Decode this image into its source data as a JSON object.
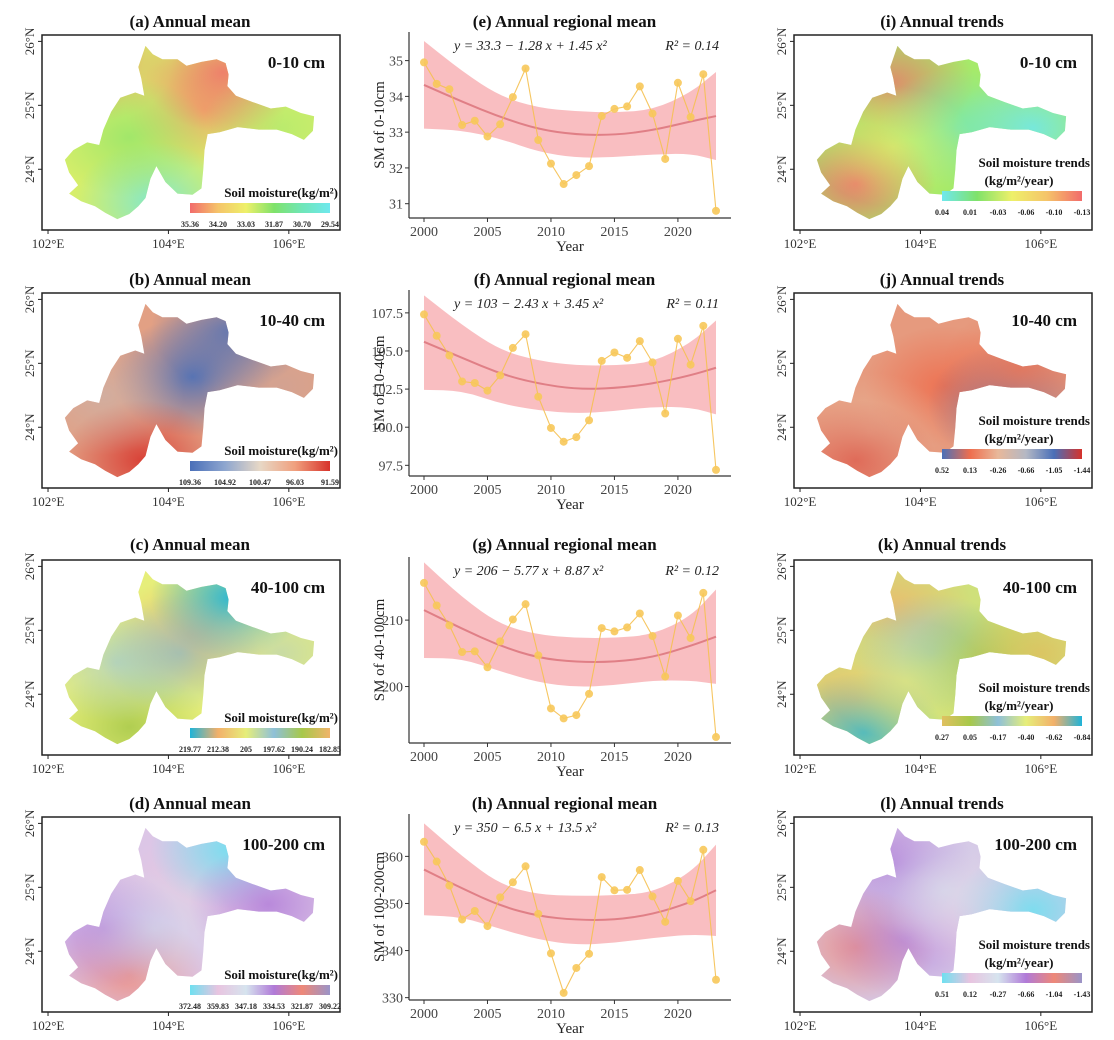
{
  "chart_data": {
    "maps": [
      {
        "id": "a",
        "title": "(a) Annual mean",
        "depth": "0-10 cm",
        "legend_title": "Soil moisture(kg/m²)",
        "legend_title_lines": [
          "Soil moisture(kg/m",
          "2",
          ")"
        ],
        "legend_ticks": [
          "35.36",
          "34.20",
          "33.03",
          "31.87",
          "30.70",
          "29.54"
        ],
        "colors": [
          "#f26b6b",
          "#f5c46a",
          "#eef06a",
          "#7fe26a",
          "#6fe6b8",
          "#6fe8ee"
        ],
        "x_ticks": [
          "102°E",
          "104°E",
          "106°E"
        ],
        "y_ticks": [
          "26°N",
          "25°N",
          "24°N"
        ],
        "field": "a"
      },
      {
        "id": "b",
        "title": "(b) Annual mean",
        "depth": "10-40 cm",
        "legend_title": "Soil moisture(kg/m²)",
        "legend_ticks": [
          "109.36",
          "104.92",
          "100.47",
          "96.03",
          "91.59"
        ],
        "colors": [
          "#4a6fb8",
          "#8ea6cf",
          "#e7d8c6",
          "#f0a07e",
          "#d7322a"
        ],
        "x_ticks": [
          "102°E",
          "104°E",
          "106°E"
        ],
        "y_ticks": [
          "26°N",
          "25°N",
          "24°N"
        ],
        "field": "b"
      },
      {
        "id": "c",
        "title": "(c) Annual mean",
        "depth": "40-100 cm",
        "legend_title": "Soil moisture(kg/m²)",
        "legend_ticks": [
          "219.77",
          "212.38",
          "205",
          "197.62",
          "190.24",
          "182.85"
        ],
        "colors": [
          "#1fb3d8",
          "#f2b06a",
          "#e6ee7a",
          "#8ec0d8",
          "#a7c84a",
          "#f0b46a"
        ],
        "x_ticks": [
          "102°E",
          "104°E",
          "106°E"
        ],
        "y_ticks": [
          "26°N",
          "25°N",
          "24°N"
        ],
        "field": "c"
      },
      {
        "id": "d",
        "title": "(d) Annual mean",
        "depth": "100-200 cm",
        "legend_title": "Soil moisture(kg/m²)",
        "legend_ticks": [
          "372.48",
          "359.83",
          "347.18",
          "334.53",
          "321.87",
          "309.22"
        ],
        "colors": [
          "#6fe0f0",
          "#e8c4e0",
          "#d6e4ee",
          "#b07ad8",
          "#ee8878",
          "#9a94c8"
        ],
        "x_ticks": [
          "102°E",
          "104°E",
          "106°E"
        ],
        "y_ticks": [
          "26°N",
          "25°N",
          "24°N"
        ],
        "field": "d"
      },
      {
        "id": "i",
        "title": "(i) Annual trends",
        "depth": "0-10 cm",
        "legend_title": "Soil moisture trends",
        "legend_units": "(kg/m²/year)",
        "legend_ticks": [
          "0.04",
          "0.01",
          "-0.03",
          "-0.06",
          "-0.10",
          "-0.13"
        ],
        "colors": [
          "#6fe8ee",
          "#7fe26a",
          "#eef06a",
          "#f5c46a",
          "#f26b6b"
        ],
        "x_ticks": [
          "102°E",
          "104°E",
          "106°E"
        ],
        "y_ticks": [
          "26°N",
          "25°N",
          "24°N"
        ],
        "field": "i"
      },
      {
        "id": "j",
        "title": "(j) Annual trends",
        "depth": "10-40 cm",
        "legend_title": "Soil moisture trends",
        "legend_units": "(kg/m²/year)",
        "legend_ticks": [
          "0.52",
          "0.13",
          "-0.26",
          "-0.66",
          "-1.05",
          "-1.44"
        ],
        "colors": [
          "#4a6fb8",
          "#ee6e4e",
          "#e8b89a",
          "#b4b8c4",
          "#4a6fb8",
          "#d7322a"
        ],
        "x_ticks": [
          "102°E",
          "104°E",
          "106°E"
        ],
        "y_ticks": [
          "26°N",
          "25°N",
          "24°N"
        ],
        "field": "j"
      },
      {
        "id": "k",
        "title": "(k) Annual trends",
        "depth": "40-100 cm",
        "legend_title": "Soil moisture trends",
        "legend_units": "(kg/m²/year)",
        "legend_ticks": [
          "0.27",
          "0.05",
          "-0.17",
          "-0.40",
          "-0.62",
          "-0.84"
        ],
        "colors": [
          "#e0c060",
          "#a7c84a",
          "#8ec0d8",
          "#e6ee7a",
          "#f2b06a",
          "#1fb3d8"
        ],
        "x_ticks": [
          "102°E",
          "104°E",
          "106°E"
        ],
        "y_ticks": [
          "26°N",
          "25°N",
          "24°N"
        ],
        "field": "k"
      },
      {
        "id": "l",
        "title": "(l) Annual trends",
        "depth": "100-200 cm",
        "legend_title": "Soil moisture trends",
        "legend_units": "(kg/m²/year)",
        "legend_ticks": [
          "0.51",
          "0.12",
          "-0.27",
          "-0.66",
          "-1.04",
          "-1.43"
        ],
        "colors": [
          "#6fe0f0",
          "#e8c4e0",
          "#d6e4ee",
          "#b07ad8",
          "#ee8878",
          "#9a94c8"
        ],
        "x_ticks": [
          "102°E",
          "104°E",
          "106°E"
        ],
        "y_ticks": [
          "26°N",
          "25°N",
          "24°N"
        ],
        "field": "l"
      }
    ],
    "series_plots": [
      {
        "id": "e",
        "type": "line",
        "title": "(e) Annual regional mean",
        "xlabel": "Year",
        "ylabel": "SM of 0-10cm",
        "equation": "y = 33.3 − 1.28 x + 1.45 x²",
        "r2": "R² = 0.14",
        "ylim": [
          30.6,
          35.8
        ],
        "yticks": [
          31,
          32,
          33,
          34,
          35
        ],
        "ytick_labels": [
          "31",
          "32",
          "33",
          "34",
          "35"
        ],
        "x": [
          2000,
          2001,
          2002,
          2003,
          2004,
          2005,
          2006,
          2007,
          2008,
          2009,
          2010,
          2011,
          2012,
          2013,
          2014,
          2015,
          2016,
          2017,
          2018,
          2019,
          2020,
          2021,
          2022,
          2023
        ],
        "values": [
          34.95,
          34.35,
          34.2,
          33.2,
          33.32,
          32.88,
          33.22,
          33.98,
          34.78,
          32.78,
          32.12,
          31.55,
          31.8,
          32.05,
          33.45,
          33.65,
          33.72,
          34.28,
          33.52,
          32.25,
          34.38,
          33.42,
          34.62,
          30.8
        ],
        "fit": {
          "x": [
            2000,
            2003,
            2006,
            2009,
            2012,
            2015,
            2018,
            2021,
            2023
          ],
          "y": [
            34.32,
            33.85,
            33.42,
            33.08,
            32.93,
            32.92,
            33.05,
            33.3,
            33.45
          ]
        },
        "band_upper": [
          35.55,
          34.7,
          34.0,
          33.68,
          33.58,
          33.55,
          33.62,
          34.1,
          34.68
        ],
        "band_lower": [
          33.1,
          33.05,
          32.82,
          32.45,
          32.28,
          32.3,
          32.38,
          32.4,
          32.22
        ]
      },
      {
        "id": "f",
        "type": "line",
        "title": "(f) Annual regional mean",
        "xlabel": "Year",
        "ylabel": "SM of 10-40cm",
        "equation": "y = 103 − 2.43 x + 3.45 x²",
        "r2": "R² = 0.11",
        "ylim": [
          96.8,
          109.0
        ],
        "yticks": [
          97.5,
          100.0,
          102.5,
          105.0,
          107.5
        ],
        "ytick_labels": [
          "97.5",
          "100.0",
          "102.5",
          "105.0",
          "107.5"
        ],
        "x": [
          2000,
          2001,
          2002,
          2003,
          2004,
          2005,
          2006,
          2007,
          2008,
          2009,
          2010,
          2011,
          2012,
          2013,
          2014,
          2015,
          2016,
          2017,
          2018,
          2019,
          2020,
          2021,
          2022,
          2023
        ],
        "values": [
          107.4,
          106.0,
          104.7,
          103.0,
          102.9,
          102.4,
          103.4,
          105.2,
          106.1,
          102.0,
          99.95,
          99.05,
          99.35,
          100.45,
          104.35,
          104.9,
          104.55,
          105.65,
          104.25,
          100.9,
          105.8,
          104.1,
          106.65,
          97.2
        ],
        "fit": {
          "x": [
            2000,
            2003,
            2006,
            2009,
            2012,
            2015,
            2018,
            2021,
            2023
          ],
          "y": [
            105.6,
            104.55,
            103.5,
            102.85,
            102.5,
            102.55,
            102.85,
            103.4,
            103.9
          ]
        },
        "band_upper": [
          108.65,
          106.7,
          105.05,
          104.35,
          104.05,
          104.05,
          104.25,
          105.5,
          107.0
        ],
        "band_lower": [
          102.45,
          102.4,
          101.55,
          101.1,
          100.9,
          101.05,
          101.35,
          101.3,
          100.85
        ]
      },
      {
        "id": "g",
        "type": "line",
        "title": "(g) Annual regional mean",
        "xlabel": "Year",
        "ylabel": "SM of 40-100cm",
        "equation": "y = 206 − 5.77 x + 8.87 x²",
        "r2": "R² = 0.12",
        "ylim": [
          191.5,
          219.5
        ],
        "yticks": [
          200,
          210
        ],
        "ytick_labels": [
          "200",
          "210"
        ],
        "x": [
          2000,
          2001,
          2002,
          2003,
          2004,
          2005,
          2006,
          2007,
          2008,
          2009,
          2010,
          2011,
          2012,
          2013,
          2014,
          2015,
          2016,
          2017,
          2018,
          2019,
          2020,
          2021,
          2022,
          2023
        ],
        "values": [
          215.6,
          212.2,
          209.2,
          205.2,
          205.3,
          202.9,
          206.8,
          210.1,
          212.4,
          204.7,
          196.7,
          195.2,
          195.7,
          198.9,
          208.8,
          208.3,
          208.9,
          211.0,
          207.6,
          201.5,
          210.7,
          207.3,
          214.1,
          192.4
        ],
        "fit": {
          "x": [
            2000,
            2003,
            2006,
            2009,
            2012,
            2015,
            2018,
            2021,
            2023
          ],
          "y": [
            211.5,
            208.7,
            206.1,
            204.3,
            203.7,
            203.7,
            204.4,
            206.1,
            207.5
          ]
        },
        "band_upper": [
          218.7,
          213.4,
          209.3,
          207.8,
          207.3,
          207.3,
          207.8,
          210.5,
          214.6
        ],
        "band_lower": [
          204.3,
          204.2,
          202.3,
          200.6,
          199.9,
          200.2,
          200.9,
          200.9,
          200.4
        ]
      },
      {
        "id": "h",
        "type": "line",
        "title": "(h) Annual regional mean",
        "xlabel": "Year",
        "ylabel": "SM of 100-200cm",
        "equation": "y = 350 − 6.5 x + 13.5 x²",
        "r2": "R² = 0.13",
        "ylim": [
          329.5,
          369
        ],
        "yticks": [
          330,
          340,
          350,
          360
        ],
        "ytick_labels": [
          "330",
          "340",
          "350",
          "360"
        ],
        "x": [
          2000,
          2001,
          2002,
          2003,
          2004,
          2005,
          2006,
          2007,
          2008,
          2009,
          2010,
          2011,
          2012,
          2013,
          2014,
          2015,
          2016,
          2017,
          2018,
          2019,
          2020,
          2021,
          2022,
          2023
        ],
        "values": [
          363.1,
          358.9,
          353.8,
          346.6,
          348.4,
          345.2,
          351.3,
          354.5,
          357.9,
          347.8,
          339.4,
          331.0,
          336.3,
          339.3,
          355.6,
          352.8,
          352.9,
          357.1,
          351.5,
          346.1,
          354.8,
          350.5,
          361.4,
          333.8
        ],
        "fit": {
          "x": [
            2000,
            2003,
            2006,
            2009,
            2012,
            2015,
            2018,
            2021,
            2023
          ],
          "y": [
            357.2,
            353.2,
            349.5,
            347.3,
            346.5,
            346.5,
            347.7,
            350.2,
            352.8
          ]
        },
        "band_upper": [
          367.0,
          360.0,
          354.0,
          351.9,
          351.6,
          351.7,
          352.3,
          356.5,
          362.5
        ],
        "band_lower": [
          347.5,
          347.1,
          344.6,
          342.3,
          341.2,
          341.6,
          342.7,
          343.4,
          343.1
        ]
      }
    ]
  }
}
